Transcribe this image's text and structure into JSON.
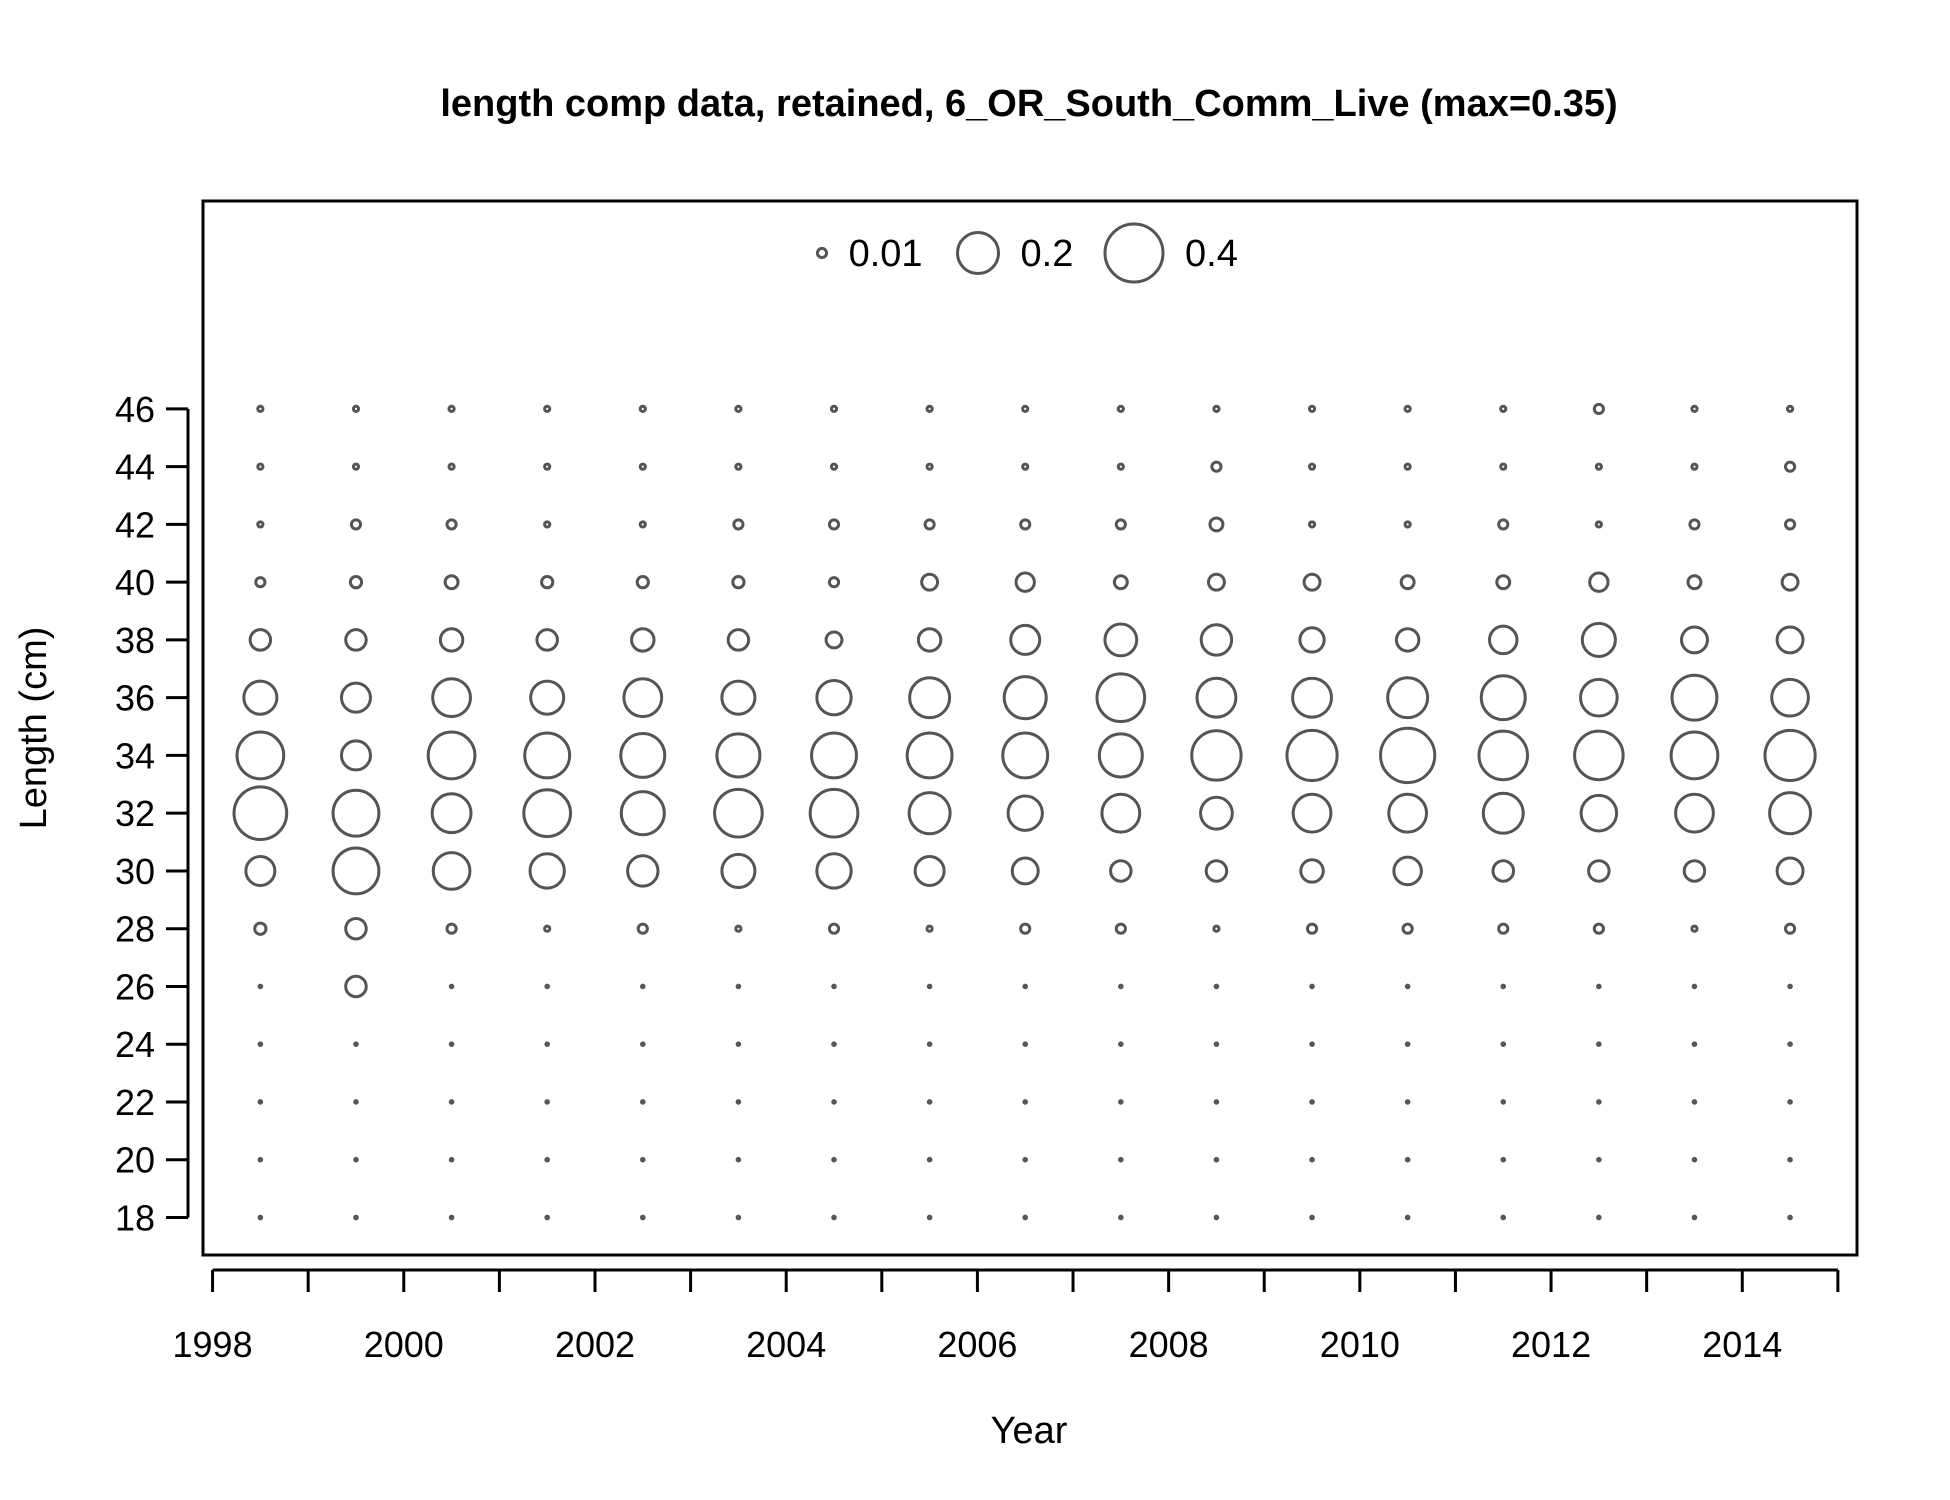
{
  "chart_data": {
    "type": "bubble",
    "title": "length comp data, retained, 6_OR_South_Comm_Live (max=0.35)",
    "xlabel": "Year",
    "ylabel": "Length (cm)",
    "xlim": [
      1997.9,
      2015.2
    ],
    "ylim": [
      16.7,
      53.2
    ],
    "x_ticks": [
      1998,
      1999,
      2000,
      2001,
      2002,
      2003,
      2004,
      2005,
      2006,
      2007,
      2008,
      2009,
      2010,
      2011,
      2012,
      2013,
      2014,
      2015
    ],
    "x_tick_labels": [
      "1998",
      "2000",
      "2002",
      "2004",
      "2006",
      "2008",
      "2010",
      "2012",
      "2014"
    ],
    "y_ticks": [
      18,
      20,
      22,
      24,
      26,
      28,
      30,
      32,
      34,
      36,
      38,
      40,
      42,
      44,
      46
    ],
    "y_tick_labels": [
      "18",
      "20",
      "22",
      "24",
      "26",
      "28",
      "30",
      "32",
      "34",
      "36",
      "38",
      "40",
      "42",
      "44",
      "46"
    ],
    "legend": {
      "position": "top-center",
      "entries": [
        {
          "value": 0.01,
          "label": "0.01"
        },
        {
          "value": 0.2,
          "label": "0.2"
        },
        {
          "value": 0.4,
          "label": "0.4"
        }
      ]
    },
    "max_value": 0.35,
    "years": [
      1998.5,
      1999.5,
      2000.5,
      2001.5,
      2002.5,
      2003.5,
      2004.5,
      2005.5,
      2006.5,
      2007.5,
      2008.5,
      2009.5,
      2010.5,
      2011.5,
      2012.5,
      2013.5,
      2014.5
    ],
    "lengths": [
      18,
      20,
      22,
      24,
      26,
      28,
      30,
      32,
      34,
      36,
      38,
      40,
      42,
      44,
      46
    ],
    "values": [
      [
        0,
        0,
        0,
        0,
        0,
        0.015,
        0.1,
        0.33,
        0.26,
        0.13,
        0.05,
        0.01,
        0.003,
        0.002,
        0.002
      ],
      [
        0,
        0,
        0,
        0,
        0.05,
        0.05,
        0.25,
        0.25,
        0.1,
        0.1,
        0.05,
        0.015,
        0.01,
        0.002,
        0.002
      ],
      [
        0,
        0,
        0,
        0,
        0,
        0.01,
        0.16,
        0.18,
        0.26,
        0.17,
        0.06,
        0.02,
        0.01,
        0.002,
        0.002
      ],
      [
        0,
        0,
        0,
        0,
        0,
        0.002,
        0.14,
        0.26,
        0.24,
        0.13,
        0.05,
        0.015,
        0.002,
        0.002,
        0.002
      ],
      [
        0,
        0,
        0,
        0,
        0,
        0.01,
        0.11,
        0.22,
        0.23,
        0.17,
        0.06,
        0.015,
        0.002,
        0.002,
        0.002
      ],
      [
        0,
        0,
        0,
        0,
        0,
        0.002,
        0.13,
        0.27,
        0.22,
        0.13,
        0.05,
        0.015,
        0.01,
        0.002,
        0.002
      ],
      [
        0,
        0,
        0,
        0,
        0,
        0.01,
        0.14,
        0.27,
        0.24,
        0.14,
        0.03,
        0.01,
        0.01,
        0.002,
        0.002
      ],
      [
        0,
        0,
        0,
        0,
        0,
        0.002,
        0.1,
        0.2,
        0.24,
        0.19,
        0.06,
        0.03,
        0.01,
        0.002,
        0.002
      ],
      [
        0,
        0,
        0,
        0,
        0,
        0.01,
        0.08,
        0.14,
        0.24,
        0.21,
        0.1,
        0.04,
        0.01,
        0.002,
        0.002
      ],
      [
        0,
        0,
        0,
        0,
        0,
        0.01,
        0.05,
        0.17,
        0.22,
        0.27,
        0.12,
        0.02,
        0.01,
        0.002,
        0.002
      ],
      [
        0,
        0,
        0,
        0,
        0,
        0.002,
        0.05,
        0.12,
        0.29,
        0.18,
        0.11,
        0.03,
        0.02,
        0.01,
        0.002
      ],
      [
        0,
        0,
        0,
        0,
        0,
        0.01,
        0.06,
        0.17,
        0.3,
        0.18,
        0.07,
        0.03,
        0.002,
        0.002,
        0.002
      ],
      [
        0,
        0,
        0,
        0,
        0,
        0.01,
        0.09,
        0.17,
        0.35,
        0.19,
        0.06,
        0.02,
        0.002,
        0.002,
        0.002
      ],
      [
        0,
        0,
        0,
        0,
        0,
        0.01,
        0.05,
        0.19,
        0.28,
        0.23,
        0.09,
        0.02,
        0.01,
        0.002,
        0.002
      ],
      [
        0,
        0,
        0,
        0,
        0,
        0.01,
        0.05,
        0.15,
        0.28,
        0.16,
        0.13,
        0.04,
        0.002,
        0.002,
        0.01
      ],
      [
        0,
        0,
        0,
        0,
        0,
        0.002,
        0.05,
        0.17,
        0.26,
        0.24,
        0.08,
        0.02,
        0.01,
        0.002,
        0.002
      ],
      [
        0,
        0,
        0,
        0,
        0,
        0.01,
        0.08,
        0.2,
        0.3,
        0.16,
        0.08,
        0.03,
        0.01,
        0.01,
        0.002
      ]
    ]
  },
  "colors": {
    "bubble_stroke": "#555555",
    "axis": "#000000",
    "background": "#ffffff"
  }
}
